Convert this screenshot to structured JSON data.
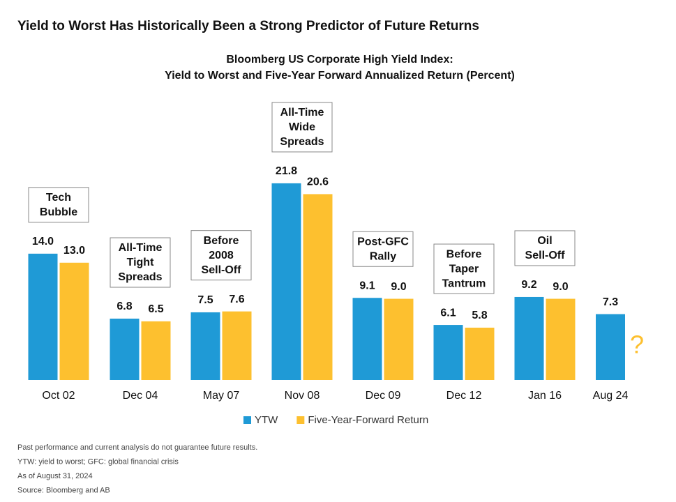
{
  "chart_data": {
    "type": "bar",
    "title": "Yield to Worst Has Historically Been a Strong Predictor of Future Returns",
    "subtitle": [
      "Bloomberg US Corporate High Yield Index:",
      "Yield to Worst and Five-Year Forward Annualized Return (Percent)"
    ],
    "categories": [
      "Oct 02",
      "Dec 04",
      "May 07",
      "Nov 08",
      "Dec 09",
      "Dec 12",
      "Jan 16",
      "Aug 24"
    ],
    "series": [
      {
        "name": "YTW",
        "color": "#1f9ad6",
        "values": [
          14.0,
          6.8,
          7.5,
          21.8,
          9.1,
          6.1,
          9.2,
          7.3
        ],
        "value_labels": [
          "14.0",
          "6.8",
          "7.5",
          "21.8",
          "9.1",
          "6.1",
          "9.2",
          "7.3"
        ]
      },
      {
        "name": "Five-Year-Forward Return",
        "color": "#fdc02f",
        "values": [
          13.0,
          6.5,
          7.6,
          20.6,
          9.0,
          5.8,
          9.0,
          null
        ],
        "value_labels": [
          "13.0",
          "6.5",
          "7.6",
          "20.6",
          "9.0",
          "5.8",
          "9.0",
          null
        ]
      }
    ],
    "unknown_marker": "?",
    "annotations": [
      [
        "Tech",
        "Bubble"
      ],
      [
        "All-Time",
        "Tight",
        "Spreads"
      ],
      [
        "Before",
        "2008",
        "Sell-Off"
      ],
      [
        "All-Time",
        "Wide",
        "Spreads"
      ],
      [
        "Post-GFC",
        "Rally"
      ],
      [
        "Before",
        "Taper",
        "Tantrum"
      ],
      [
        "Oil",
        "Sell-Off"
      ],
      null
    ],
    "footnotes": [
      "Past performance and current analysis do not guarantee future results.",
      "YTW: yield to worst; GFC: global financial crisis",
      "As of August 31, 2024",
      "Source: Bloomberg and AB"
    ]
  }
}
